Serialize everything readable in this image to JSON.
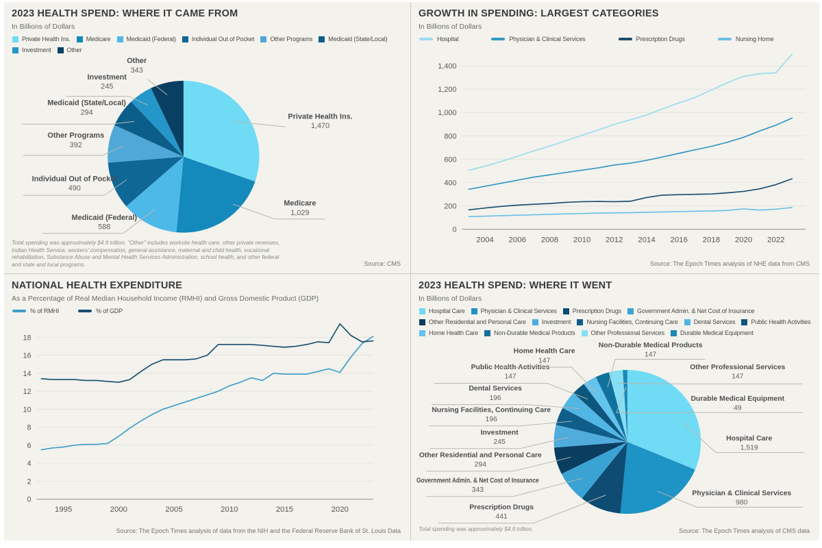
{
  "chart_data": [
    {
      "id": "came-from",
      "type": "pie",
      "title": "2023 HEALTH SPEND: WHERE IT CAME FROM",
      "subtitle": "In Billions of Dollars",
      "slices": [
        {
          "label": "Private Health Ins.",
          "value": 1470,
          "display": "1,470",
          "color": "#70DBF4"
        },
        {
          "label": "Medicare",
          "value": 1029,
          "display": "1,029",
          "color": "#1489BC"
        },
        {
          "label": "Medicaid (Federal)",
          "value": 588,
          "display": "588",
          "color": "#4DB9E9"
        },
        {
          "label": "Individual Out of Pocket",
          "value": 490,
          "display": "490",
          "color": "#0E6795"
        },
        {
          "label": "Other Programs",
          "value": 392,
          "display": "392",
          "color": "#4FA8D8"
        },
        {
          "label": "Medicaid (State/Local)",
          "value": 294,
          "display": "294",
          "color": "#0C5E8A"
        },
        {
          "label": "Investment",
          "value": 245,
          "display": "245",
          "color": "#2496C9"
        },
        {
          "label": "Other",
          "value": 343,
          "display": "343",
          "color": "#093F63"
        }
      ],
      "legend_rows": [
        [
          0,
          1,
          2,
          3,
          4,
          5
        ],
        [
          6,
          7
        ]
      ],
      "footnote": "Total spending was approximately $4.9 trillion. \"Other\" includes worksite health care, other private revenues, Indian Health Service, workers' compensation, general assistance, maternal and child health, vocational rehabilitation, Substance Abuse and Mental Health Services Administration, school health, and other federal and state and local programs.",
      "source": "Source: CMS"
    },
    {
      "id": "growth",
      "type": "line",
      "title": "GROWTH IN SPENDING: LARGEST CATEGORIES",
      "subtitle": "In Billions of Dollars",
      "x": [
        2003,
        2004,
        2005,
        2006,
        2007,
        2008,
        2009,
        2010,
        2011,
        2012,
        2013,
        2014,
        2015,
        2016,
        2017,
        2018,
        2019,
        2020,
        2021,
        2022,
        2023
      ],
      "series": [
        {
          "name": "Hospital",
          "color": "#99DEEE",
          "values": [
            505,
            540,
            580,
            625,
            670,
            712,
            758,
            805,
            850,
            898,
            938,
            978,
            1032,
            1082,
            1128,
            1192,
            1255,
            1310,
            1332,
            1340,
            1500
          ]
        },
        {
          "name": "Physician & Clinical Services",
          "color": "#3598C3",
          "values": [
            342,
            368,
            394,
            420,
            446,
            466,
            486,
            506,
            526,
            550,
            566,
            590,
            620,
            650,
            680,
            710,
            745,
            788,
            842,
            892,
            952
          ]
        },
        {
          "name": "Prescription Drugs",
          "color": "#1A4F70",
          "values": [
            166,
            182,
            196,
            206,
            214,
            220,
            230,
            236,
            238,
            236,
            240,
            272,
            292,
            296,
            299,
            302,
            312,
            324,
            346,
            382,
            432
          ]
        },
        {
          "name": "Nursing Home",
          "color": "#6CC1E7",
          "values": [
            108,
            112,
            116,
            120,
            124,
            128,
            132,
            135,
            138,
            140,
            142,
            145,
            148,
            151,
            154,
            157,
            161,
            174,
            164,
            172,
            186
          ]
        }
      ],
      "legend_rows": [
        [
          0,
          1,
          2,
          3
        ]
      ],
      "ylim": [
        0,
        1400
      ],
      "ytick_step": 200,
      "ytick_labels": [
        "0",
        "200",
        "400",
        "600",
        "800",
        "1,000",
        "1,200",
        "1,400"
      ],
      "xticks": [
        "2004",
        "2006",
        "2008",
        "2010",
        "2012",
        "2014",
        "2016",
        "2018",
        "2020",
        "2022"
      ],
      "source": "Source: The Epoch Times analysis of NHE data from CMS"
    },
    {
      "id": "nhe",
      "type": "line",
      "title": "NATIONAL HEALTH EXPENDITURE",
      "subtitle": "As a Percentage of Real Median Household Income (RMHI) and Gross Domestic Product (GDP)",
      "x": [
        1993,
        1994,
        1995,
        1996,
        1997,
        1998,
        1999,
        2000,
        2001,
        2002,
        2003,
        2004,
        2005,
        2006,
        2007,
        2008,
        2009,
        2010,
        2011,
        2012,
        2013,
        2014,
        2015,
        2016,
        2017,
        2018,
        2019,
        2020,
        2021,
        2022,
        2023
      ],
      "series": [
        {
          "name": "% of RMHI",
          "color": "#3E9EC9",
          "values": [
            5.5,
            5.7,
            5.8,
            6.0,
            6.1,
            6.1,
            6.2,
            7.0,
            7.9,
            8.7,
            9.4,
            10.0,
            10.4,
            10.8,
            11.2,
            11.6,
            12.0,
            12.6,
            13.0,
            13.5,
            13.2,
            14.0,
            13.9,
            13.9,
            13.9,
            14.2,
            14.5,
            14.1,
            15.8,
            17.3,
            18.1
          ]
        },
        {
          "name": "% of GDP",
          "color": "#174F6E",
          "values": [
            13.4,
            13.3,
            13.3,
            13.3,
            13.2,
            13.2,
            13.1,
            13.0,
            13.3,
            14.2,
            15.0,
            15.5,
            15.5,
            15.5,
            15.6,
            16.0,
            17.2,
            17.2,
            17.2,
            17.2,
            17.1,
            17.0,
            16.9,
            17.0,
            17.2,
            17.5,
            17.4,
            19.5,
            18.2,
            17.5,
            17.6
          ]
        }
      ],
      "legend_rows": [
        [
          0,
          1
        ]
      ],
      "ylim": [
        0,
        18
      ],
      "ytick_step": 2,
      "ytick_labels": [
        "0",
        "2",
        "4",
        "6",
        "8",
        "10",
        "12",
        "14",
        "16",
        "18"
      ],
      "xticks": [
        "1995",
        "2000",
        "2005",
        "2010",
        "2015",
        "2020"
      ],
      "source": "Source: The Epoch Times analysis of data from the NIH and the Federal Reserve Bank of St. Louis Data"
    },
    {
      "id": "went",
      "type": "pie",
      "title": "2023 HEALTH SPEND: WHERE IT WENT",
      "subtitle": "In Billions of Dollars",
      "slices": [
        {
          "label": "Hospital Care",
          "value": 1519,
          "display": "1,519",
          "color": "#70DBF4"
        },
        {
          "label": "Physician & Clinical Services",
          "value": 980,
          "display": "980",
          "color": "#1E93C6"
        },
        {
          "label": "Prescription Drugs",
          "value": 441,
          "display": "441",
          "color": "#0E4C73"
        },
        {
          "label": "Government Admin. & Net Cost of Insurance",
          "value": 343,
          "display": "343",
          "color": "#3BA3D4"
        },
        {
          "label": "Other Residential and Personal Care",
          "value": 294,
          "display": "294",
          "color": "#0A3E61"
        },
        {
          "label": "Investment",
          "value": 245,
          "display": "245",
          "color": "#4FACDC"
        },
        {
          "label": "Nursing Facilities, Continuing Care",
          "value": 196,
          "display": "196",
          "color": "#0F5E8A"
        },
        {
          "label": "Dental Services",
          "value": 196,
          "display": "196",
          "color": "#52B6E4"
        },
        {
          "label": "Public Health Activities",
          "value": 147,
          "display": "147",
          "color": "#0D567E"
        },
        {
          "label": "Home Health Care",
          "value": 147,
          "display": "147",
          "color": "#63C3EC"
        },
        {
          "label": "Non-Durable Medical Products",
          "value": 147,
          "display": "147",
          "color": "#11719D"
        },
        {
          "label": "Other Professional Services",
          "value": 147,
          "display": "147",
          "color": "#86DFF4"
        },
        {
          "label": "Durable Medical Equipment",
          "value": 49,
          "display": "49",
          "color": "#1B88B8"
        }
      ],
      "legend_rows": [
        [
          0,
          1,
          2,
          3
        ],
        [
          4,
          5,
          6,
          7,
          8
        ],
        [
          9,
          10,
          11,
          12
        ]
      ],
      "footnote": "Total spending was approximately $4.9 trillion.",
      "source": "Source: The Epoch Times analysis of CMS data"
    }
  ]
}
